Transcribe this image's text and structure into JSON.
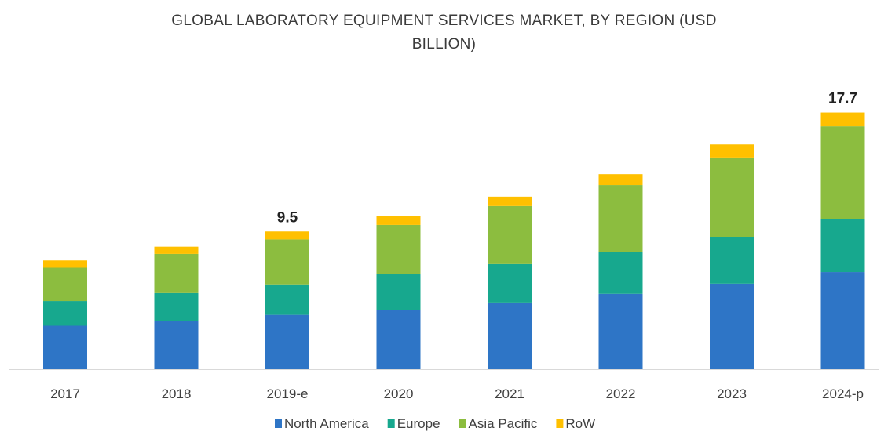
{
  "chart_data": {
    "type": "bar",
    "stacked": true,
    "title": "GLOBAL LABORATORY EQUIPMENT SERVICES MARKET, BY REGION (USD BILLION)",
    "title_lines": [
      "GLOBAL LABORATORY EQUIPMENT SERVICES MARKET, BY REGION (USD",
      "BILLION)"
    ],
    "categories": [
      "2017",
      "2018",
      "2019-e",
      "2020",
      "2021",
      "2022",
      "2023",
      "2024-p"
    ],
    "series": [
      {
        "name": "North America",
        "color": "#2e75c6",
        "values": [
          3.0,
          3.3,
          3.75,
          4.1,
          4.6,
          5.2,
          5.9,
          6.7
        ]
      },
      {
        "name": "Europe",
        "color": "#17a88e",
        "values": [
          1.7,
          1.95,
          2.1,
          2.45,
          2.65,
          2.9,
          3.2,
          3.65
        ]
      },
      {
        "name": "Asia Pacific",
        "color": "#8cbd3f",
        "values": [
          2.3,
          2.7,
          3.1,
          3.4,
          4.0,
          4.6,
          5.5,
          6.4
        ]
      },
      {
        "name": "RoW",
        "color": "#ffc000",
        "values": [
          0.5,
          0.5,
          0.55,
          0.6,
          0.65,
          0.75,
          0.9,
          0.95
        ]
      }
    ],
    "data_labels": [
      {
        "category": "2019-e",
        "text": "9.5"
      },
      {
        "category": "2024-p",
        "text": "17.7"
      }
    ],
    "ylim": [
      0,
      18
    ],
    "xlabel": "",
    "ylabel": "",
    "grid": false,
    "legend_position": "bottom"
  }
}
